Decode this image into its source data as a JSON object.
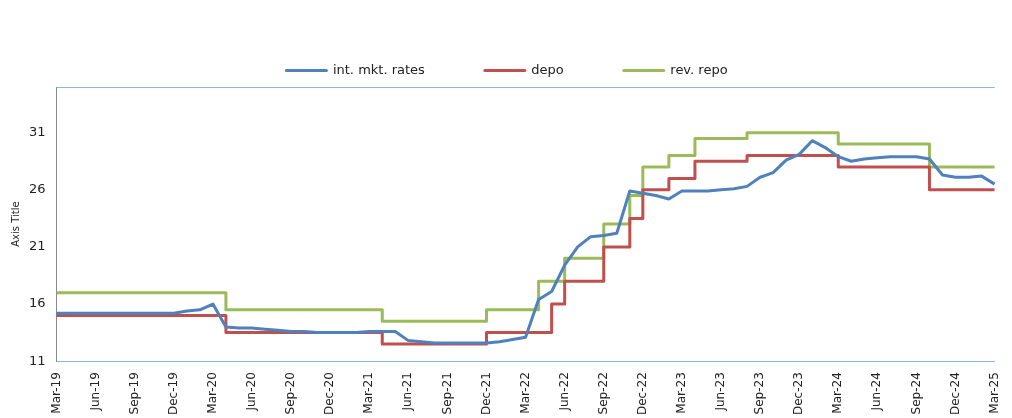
{
  "chart_data": {
    "type": "line",
    "ylabel": "Axis Title",
    "categories": [
      "Mar-19",
      null,
      null,
      "Jun-19",
      null,
      null,
      "Sep-19",
      null,
      null,
      "Dec-19",
      null,
      null,
      "Mar-20",
      null,
      null,
      "Jun-20",
      null,
      null,
      "Sep-20",
      null,
      null,
      "Dec-20",
      null,
      null,
      "Mar-21",
      null,
      null,
      "Jun-21",
      null,
      null,
      "Sep-21",
      null,
      null,
      "Dec-21",
      null,
      null,
      "Mar-22",
      null,
      null,
      "Jun-22",
      null,
      null,
      "Sep-22",
      null,
      null,
      "Dec-22",
      null,
      null,
      "Mar-23",
      null,
      null,
      "Jun-23",
      null,
      null,
      "Sep-23",
      null,
      null,
      "Dec-23",
      null,
      null,
      "Mar-24",
      null,
      null,
      "Jun-24",
      null,
      null,
      "Sep-24",
      null,
      null,
      "Dec-24",
      null,
      null,
      "Mar-25"
    ],
    "series": [
      {
        "name": "int. mkt. rates",
        "color": "#4f81bd",
        "values": [
          15.2,
          15.2,
          15.2,
          15.2,
          15.2,
          15.2,
          15.2,
          15.2,
          15.2,
          15.2,
          15.4,
          15.5,
          16.0,
          14.0,
          13.9,
          13.9,
          13.8,
          13.7,
          13.6,
          13.6,
          13.5,
          13.5,
          13.5,
          13.5,
          13.6,
          13.6,
          13.6,
          12.8,
          12.7,
          12.6,
          12.6,
          12.6,
          12.6,
          12.6,
          12.7,
          12.9,
          13.1,
          16.4,
          17.1,
          19.4,
          21.0,
          21.9,
          22.0,
          22.2,
          25.9,
          25.7,
          25.5,
          25.2,
          25.9,
          25.9,
          25.9,
          26.0,
          26.1,
          26.3,
          27.1,
          27.5,
          28.6,
          29.1,
          30.3,
          29.7,
          28.9,
          28.5,
          28.7,
          28.8,
          28.9,
          28.9,
          28.9,
          28.7,
          27.3,
          27.1,
          27.1,
          27.2,
          26.5
        ]
      },
      {
        "name": "depo",
        "type": "step",
        "color": "#c0504d",
        "values": [
          15,
          15,
          15,
          15,
          15,
          15,
          15,
          15,
          15,
          15,
          15,
          15,
          15,
          13.5,
          13.5,
          13.5,
          13.5,
          13.5,
          13.5,
          13.5,
          13.5,
          13.5,
          13.5,
          13.5,
          13.5,
          12.5,
          12.5,
          12.5,
          12.5,
          12.5,
          12.5,
          12.5,
          12.5,
          13.5,
          13.5,
          13.5,
          13.5,
          13.5,
          16,
          18,
          18,
          18,
          21,
          21,
          23.5,
          26,
          26,
          27,
          27,
          28.5,
          28.5,
          28.5,
          28.5,
          29,
          29,
          29,
          29,
          29,
          29,
          29,
          28,
          28,
          28,
          28,
          28,
          28,
          28,
          26,
          26,
          26,
          26,
          26,
          26
        ]
      },
      {
        "name": "rev. repo",
        "type": "step",
        "color": "#9bbb59",
        "values": [
          17,
          17,
          17,
          17,
          17,
          17,
          17,
          17,
          17,
          17,
          17,
          17,
          17,
          15.5,
          15.5,
          15.5,
          15.5,
          15.5,
          15.5,
          15.5,
          15.5,
          15.5,
          15.5,
          15.5,
          15.5,
          14.5,
          14.5,
          14.5,
          14.5,
          14.5,
          14.5,
          14.5,
          14.5,
          15.5,
          15.5,
          15.5,
          15.5,
          18,
          18,
          20,
          20,
          20,
          23,
          23,
          25.5,
          28,
          28,
          29,
          29,
          30.5,
          30.5,
          30.5,
          30.5,
          31,
          31,
          31,
          31,
          31,
          31,
          31,
          30,
          30,
          30,
          30,
          30,
          30,
          30,
          28,
          28,
          28,
          28,
          28,
          28
        ]
      }
    ],
    "ylim": [
      11,
      35
    ],
    "yticks": [
      11,
      16,
      21,
      26,
      31
    ],
    "grid": false,
    "legend": "top",
    "marker": "none"
  }
}
